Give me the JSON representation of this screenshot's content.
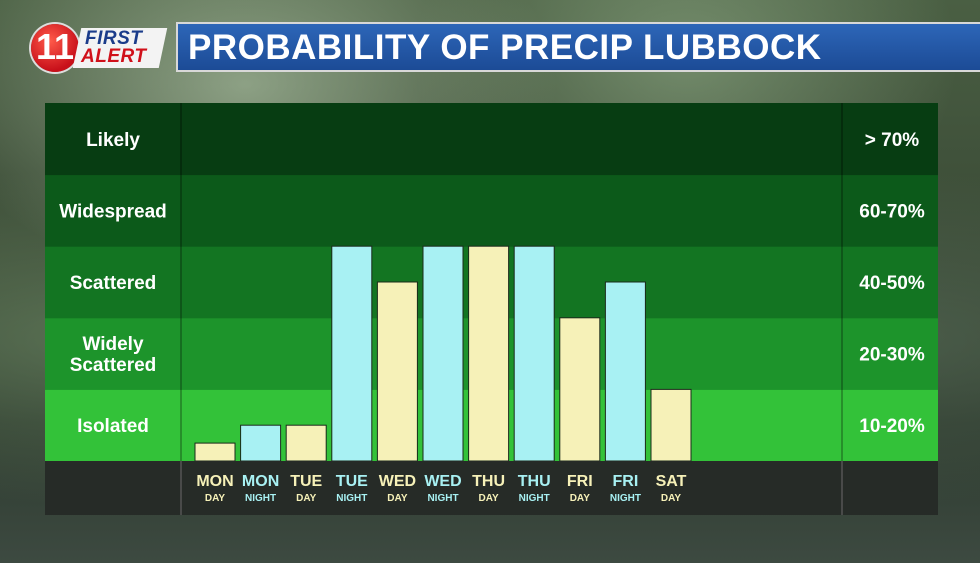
{
  "logo": {
    "number": "11",
    "word1": "FIRST",
    "word2": "ALERT"
  },
  "header": {
    "title": "PROBABILITY OF PRECIP LUBBOCK"
  },
  "colors": {
    "band_likely": "#073d12",
    "band_widespread": "#0c5a1a",
    "band_scattered": "#137522",
    "band_widely_scattered": "#1d942b",
    "band_isolated": "#33c239",
    "day_bar": "#f6f1b8",
    "night_bar": "#a8f1f3",
    "axis_strip": "#262b27"
  },
  "chart_data": {
    "type": "bar",
    "categories": [
      {
        "day": "MON",
        "period": "DAY"
      },
      {
        "day": "MON",
        "period": "NIGHT"
      },
      {
        "day": "TUE",
        "period": "DAY"
      },
      {
        "day": "TUE",
        "period": "NIGHT"
      },
      {
        "day": "WED",
        "period": "DAY"
      },
      {
        "day": "WED",
        "period": "NIGHT"
      },
      {
        "day": "THU",
        "period": "DAY"
      },
      {
        "day": "THU",
        "period": "NIGHT"
      },
      {
        "day": "FRI",
        "period": "DAY"
      },
      {
        "day": "FRI",
        "period": "NIGHT"
      },
      {
        "day": "SAT",
        "period": "DAY"
      }
    ],
    "values": [
      0.25,
      0.5,
      0.5,
      3.0,
      2.5,
      3.0,
      3.0,
      3.0,
      2.0,
      2.5,
      1.0
    ],
    "value_units": "categories (0 = bottom, 5 = top of chart)",
    "ylim": [
      0,
      5
    ],
    "categories_y": [
      {
        "label": "Isolated",
        "range": "10-20%"
      },
      {
        "label": "Widely Scattered",
        "range": "20-30%"
      },
      {
        "label": "Scattered",
        "range": "40-50%"
      },
      {
        "label": "Widespread",
        "range": "60-70%"
      },
      {
        "label": "Likely",
        "range": "> 70%"
      }
    ],
    "y_label_lines": [
      [
        "Isolated"
      ],
      [
        "Widely",
        "Scattered"
      ],
      [
        "Scattered"
      ],
      [
        "Widespread"
      ],
      [
        "Likely"
      ]
    ]
  }
}
